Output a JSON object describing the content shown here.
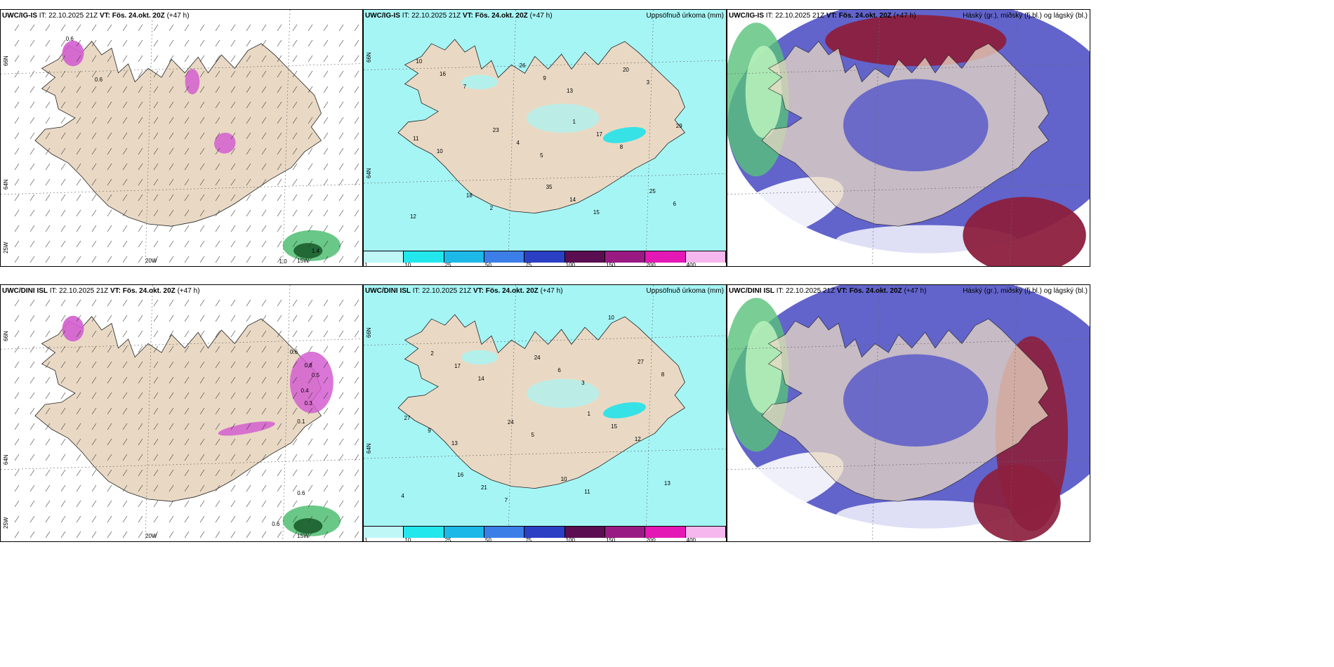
{
  "colors": {
    "land": "#e9d9c4",
    "cyan_light": "#a6f5f5",
    "cyan": "#22e2ea",
    "blue_dark": "#5a5cc8",
    "maroon": "#8c1f3e",
    "green": "#59c27a",
    "green_light": "#b6f0b9",
    "magenta": "#d35ed0"
  },
  "panels": [
    {
      "id": "ig-wind",
      "model": "UWC/IG-IS",
      "it_label": "IT:",
      "it_value": "22.10.2025 21Z",
      "vt_label": "VT:",
      "vt_value": "Fös. 24.okt. 20Z",
      "lead": "(+47 h)",
      "right_title": "",
      "lat_labels": [
        "66N",
        "64N",
        "25W"
      ],
      "lon_labels": [
        "20W",
        "15W"
      ],
      "values": [
        "0.6",
        "1.0",
        "1.4",
        "0.6"
      ]
    },
    {
      "id": "ig-precip",
      "model": "UWC/IG-IS",
      "it_label": "IT:",
      "it_value": "22.10.2025 21Z",
      "vt_label": "VT:",
      "vt_value": "Fös. 24.okt. 20Z",
      "lead": "(+47 h)",
      "right_title": "Uppsöfnuð úrkoma (mm)",
      "lat_labels": [
        "66N",
        "64N"
      ],
      "values": [
        "5",
        "12",
        "13",
        "10",
        "15",
        "7",
        "8",
        "2",
        "3",
        "4",
        "6",
        "9",
        "11",
        "14",
        "16",
        "17",
        "18",
        "20",
        "23",
        "25",
        "26",
        "29",
        "35",
        "10",
        "1"
      ]
    },
    {
      "id": "ig-cloud",
      "model": "UWC/IG-IS",
      "it_label": "IT:",
      "it_value": "22.10.2025 21Z",
      "vt_label": "VT:",
      "vt_value": "Fös. 24.okt. 20Z",
      "lead": "(+47 h)",
      "right_title": "Háský (gr.), miðský (fj.bl.) og lágský (bl.)"
    },
    {
      "id": "dini-wind",
      "model": "UWC/DINI ISL",
      "it_label": "IT:",
      "it_value": "22.10.2025 21Z",
      "vt_label": "VT:",
      "vt_value": "Fös. 24.okt. 20Z",
      "lead": "(+47 h)",
      "right_title": "",
      "lat_labels": [
        "66N",
        "64N",
        "25W"
      ],
      "lon_labels": [
        "20W",
        "15W"
      ],
      "values": [
        "0.6",
        "0.8",
        "0.5",
        "0.4",
        "0.3",
        "0.1",
        "0.6",
        "0.6"
      ]
    },
    {
      "id": "dini-precip",
      "model": "UWC/DINI ISL",
      "it_label": "IT:",
      "it_value": "22.10.2025 21Z",
      "vt_label": "VT:",
      "vt_value": "Fös. 24.okt. 20Z",
      "lead": "(+47 h)",
      "right_title": "Uppsöfnuð úrkoma (mm)",
      "lat_labels": [
        "66N",
        "64N"
      ],
      "values": [
        "3",
        "13",
        "10",
        "14",
        "12",
        "7",
        "8",
        "5",
        "4",
        "6",
        "9",
        "11",
        "17",
        "15",
        "21",
        "27",
        "24",
        "13",
        "24",
        "27",
        "10",
        "2",
        "1",
        "16"
      ]
    },
    {
      "id": "dini-cloud",
      "model": "UWC/DINI ISL",
      "it_label": "IT:",
      "it_value": "22.10.2025 21Z",
      "vt_label": "VT:",
      "vt_value": "Fös. 24.okt. 20Z",
      "lead": "(+47 h)",
      "right_title": "Háský (gr.), miðský (fj.bl.) og lágský (bl.)"
    }
  ],
  "colorbar": {
    "ticks": [
      "1",
      "10",
      "25",
      "50",
      "75",
      "100",
      "150",
      "200",
      "400"
    ],
    "colors": [
      "#bff7f7",
      "#22e8ee",
      "#1cb9e8",
      "#3c7ee8",
      "#2b3fc4",
      "#5a0d50",
      "#9a1a84",
      "#e418b4",
      "#f6b7ee"
    ]
  }
}
